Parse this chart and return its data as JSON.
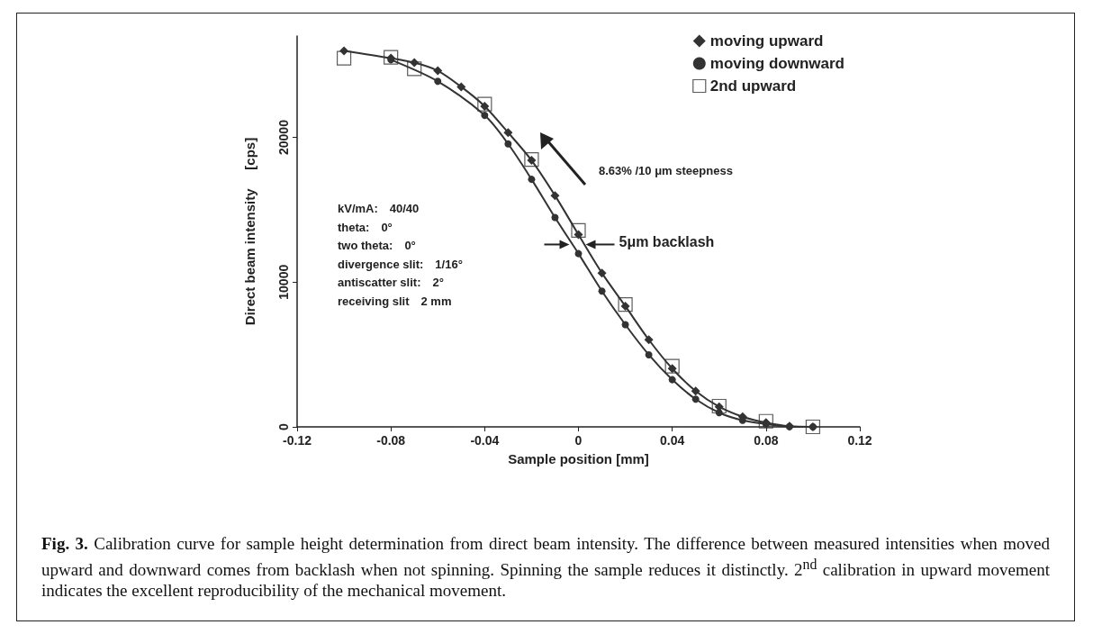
{
  "chart_data": {
    "type": "line",
    "xlabel": "Sample position [mm]",
    "ylabel": "Direct beam intensity     [cps]",
    "xlim": [
      -0.12,
      0.12
    ],
    "xticks": [
      -0.12,
      -0.08,
      -0.04,
      0.0,
      0.04,
      0.08,
      0.12
    ],
    "ylim": [
      0,
      27000
    ],
    "yticks": [
      0,
      10000,
      20000
    ],
    "grid": false,
    "legend": "top right",
    "series": [
      {
        "name": "moving upward",
        "color": "#333333",
        "marker": "diamond",
        "x": [
          -0.1,
          -0.08,
          -0.07,
          -0.06,
          -0.05,
          -0.04,
          -0.03,
          -0.02,
          -0.01,
          0.0,
          0.01,
          0.02,
          0.03,
          0.04,
          0.05,
          0.06,
          0.07,
          0.08,
          0.09,
          0.1
        ],
        "values": [
          25980,
          25470,
          25160,
          24600,
          23490,
          22150,
          20330,
          18410,
          15980,
          13280,
          10630,
          8340,
          6020,
          4030,
          2470,
          1390,
          700,
          290,
          40,
          0
        ]
      },
      {
        "name": "moving downward",
        "color": "#333333",
        "marker": "circle",
        "x": [
          -0.08,
          -0.06,
          -0.04,
          -0.03,
          -0.02,
          -0.01,
          0.0,
          0.01,
          0.02,
          0.03,
          0.04,
          0.05,
          0.06,
          0.07,
          0.08,
          0.09,
          0.1
        ],
        "values": [
          25360,
          23870,
          21520,
          19550,
          17100,
          14460,
          11970,
          9380,
          7060,
          4980,
          3260,
          1910,
          980,
          450,
          190,
          20,
          0
        ]
      },
      {
        "name": "2nd upward",
        "type": "scatter",
        "color": "#333333",
        "marker": "square",
        "x": [
          -0.1,
          -0.08,
          -0.07,
          -0.04,
          -0.02,
          0.0,
          0.02,
          0.04,
          0.06,
          0.08,
          0.1
        ],
        "values": [
          25470,
          25530,
          24740,
          22290,
          18470,
          13570,
          8450,
          4190,
          1430,
          390,
          0
        ]
      }
    ],
    "annotations": [
      "8.63% /10 μm steepness",
      {
        "text": "5μm backlash",
        "x": 0.0,
        "y": 12600
      },
      "kV/mA:   40/40",
      "theta:        0°",
      "two theta:   0°",
      "divergence slit:   1/16°",
      "antiscatter slit:      2°",
      "receiving slit      2 mm",
      "Fig. 3. Calibration curve for sample height determination from direct beam intensity. The difference between measured intensities when moved upward and downward comes from backlash when not spinning. Spinning the sample reduces it distinctly. 2$^{nd}$ calibration in upward movement indicates the excellent reproducibility of the mechanical movement."
    ]
  }
}
